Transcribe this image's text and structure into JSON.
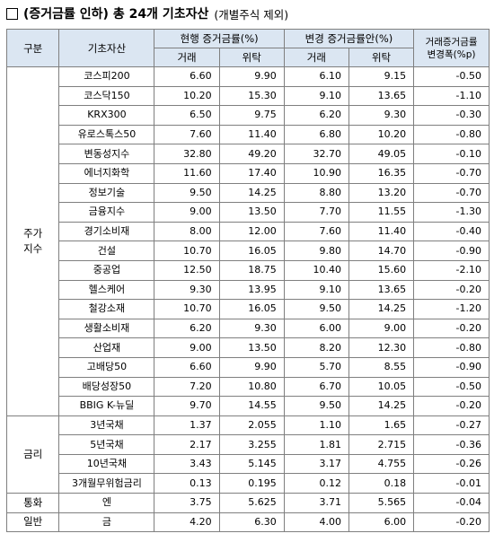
{
  "title": {
    "main": "(증거금률 인하) 총 24개 기초자산",
    "sub": "(개별주식 제외)"
  },
  "header": {
    "category": "구분",
    "asset": "기초자산",
    "current": "현행 증거금률(%)",
    "proposed": "변경 증거금률안(%)",
    "change_line1": "거래증거금률",
    "change_line2": "변경폭(%p)",
    "trade": "거래",
    "trust": "위탁"
  },
  "groups": [
    {
      "category_line1": "주가",
      "category_line2": "지수",
      "rows": [
        {
          "asset": "코스피200",
          "cur_trade": "6.60",
          "cur_trust": "9.90",
          "new_trade": "6.10",
          "new_trust": "9.15",
          "change": "-0.50"
        },
        {
          "asset": "코스닥150",
          "cur_trade": "10.20",
          "cur_trust": "15.30",
          "new_trade": "9.10",
          "new_trust": "13.65",
          "change": "-1.10"
        },
        {
          "asset": "KRX300",
          "cur_trade": "6.50",
          "cur_trust": "9.75",
          "new_trade": "6.20",
          "new_trust": "9.30",
          "change": "-0.30"
        },
        {
          "asset": "유로스톡스50",
          "cur_trade": "7.60",
          "cur_trust": "11.40",
          "new_trade": "6.80",
          "new_trust": "10.20",
          "change": "-0.80"
        },
        {
          "asset": "변동성지수",
          "cur_trade": "32.80",
          "cur_trust": "49.20",
          "new_trade": "32.70",
          "new_trust": "49.05",
          "change": "-0.10"
        },
        {
          "asset": "에너지화학",
          "cur_trade": "11.60",
          "cur_trust": "17.40",
          "new_trade": "10.90",
          "new_trust": "16.35",
          "change": "-0.70"
        },
        {
          "asset": "정보기술",
          "cur_trade": "9.50",
          "cur_trust": "14.25",
          "new_trade": "8.80",
          "new_trust": "13.20",
          "change": "-0.70"
        },
        {
          "asset": "금융지수",
          "cur_trade": "9.00",
          "cur_trust": "13.50",
          "new_trade": "7.70",
          "new_trust": "11.55",
          "change": "-1.30"
        },
        {
          "asset": "경기소비재",
          "cur_trade": "8.00",
          "cur_trust": "12.00",
          "new_trade": "7.60",
          "new_trust": "11.40",
          "change": "-0.40"
        },
        {
          "asset": "건설",
          "cur_trade": "10.70",
          "cur_trust": "16.05",
          "new_trade": "9.80",
          "new_trust": "14.70",
          "change": "-0.90"
        },
        {
          "asset": "중공업",
          "cur_trade": "12.50",
          "cur_trust": "18.75",
          "new_trade": "10.40",
          "new_trust": "15.60",
          "change": "-2.10"
        },
        {
          "asset": "헬스케어",
          "cur_trade": "9.30",
          "cur_trust": "13.95",
          "new_trade": "9.10",
          "new_trust": "13.65",
          "change": "-0.20"
        },
        {
          "asset": "철강소재",
          "cur_trade": "10.70",
          "cur_trust": "16.05",
          "new_trade": "9.50",
          "new_trust": "14.25",
          "change": "-1.20"
        },
        {
          "asset": "생활소비재",
          "cur_trade": "6.20",
          "cur_trust": "9.30",
          "new_trade": "6.00",
          "new_trust": "9.00",
          "change": "-0.20"
        },
        {
          "asset": "산업재",
          "cur_trade": "9.00",
          "cur_trust": "13.50",
          "new_trade": "8.20",
          "new_trust": "12.30",
          "change": "-0.80"
        },
        {
          "asset": "고배당50",
          "cur_trade": "6.60",
          "cur_trust": "9.90",
          "new_trade": "5.70",
          "new_trust": "8.55",
          "change": "-0.90"
        },
        {
          "asset": "배당성장50",
          "cur_trade": "7.20",
          "cur_trust": "10.80",
          "new_trade": "6.70",
          "new_trust": "10.05",
          "change": "-0.50"
        },
        {
          "asset": "BBIG K-뉴딜",
          "cur_trade": "9.70",
          "cur_trust": "14.55",
          "new_trade": "9.50",
          "new_trust": "14.25",
          "change": "-0.20"
        }
      ]
    },
    {
      "category_line1": "금리",
      "category_line2": "",
      "rows": [
        {
          "asset": "3년국채",
          "cur_trade": "1.37",
          "cur_trust": "2.055",
          "new_trade": "1.10",
          "new_trust": "1.65",
          "change": "-0.27"
        },
        {
          "asset": "5년국채",
          "cur_trade": "2.17",
          "cur_trust": "3.255",
          "new_trade": "1.81",
          "new_trust": "2.715",
          "change": "-0.36"
        },
        {
          "asset": "10년국채",
          "cur_trade": "3.43",
          "cur_trust": "5.145",
          "new_trade": "3.17",
          "new_trust": "4.755",
          "change": "-0.26"
        },
        {
          "asset": "3개월무위험금리",
          "cur_trade": "0.13",
          "cur_trust": "0.195",
          "new_trade": "0.12",
          "new_trust": "0.18",
          "change": "-0.01"
        }
      ]
    },
    {
      "category_line1": "통화",
      "category_line2": "",
      "rows": [
        {
          "asset": "엔",
          "cur_trade": "3.75",
          "cur_trust": "5.625",
          "new_trade": "3.71",
          "new_trust": "5.565",
          "change": "-0.04"
        }
      ]
    },
    {
      "category_line1": "일반",
      "category_line2": "",
      "rows": [
        {
          "asset": "금",
          "cur_trade": "4.20",
          "cur_trust": "6.30",
          "new_trade": "4.00",
          "new_trust": "6.00",
          "change": "-0.20"
        }
      ]
    }
  ]
}
